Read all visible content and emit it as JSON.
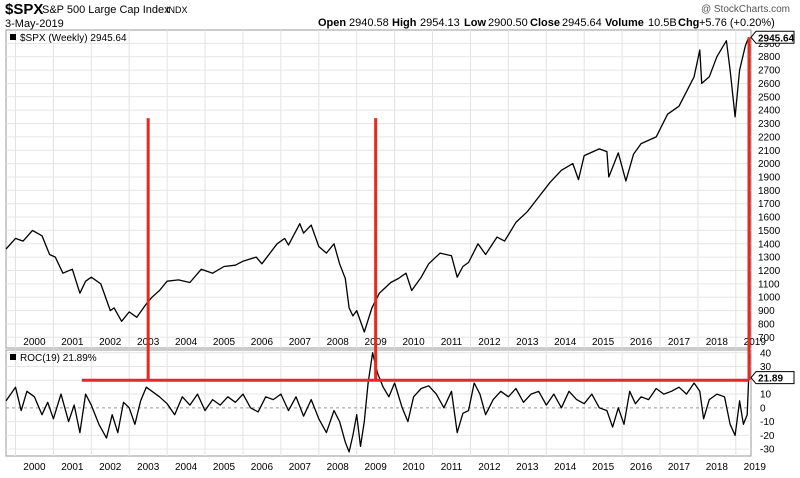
{
  "header": {
    "symbol": "$SPX",
    "name": "S&P 500 Large Cap Index",
    "exchange": "INDX",
    "date": "3-May-2019",
    "watermark": "@ StockCharts.com",
    "quote": {
      "open_label": "Open",
      "open": "2940.58",
      "high_label": "High",
      "high": "2954.13",
      "low_label": "Low",
      "low": "2900.50",
      "close_label": "Close",
      "close": "2945.64",
      "volume_label": "Volume",
      "volume": "10.5B",
      "chg_label": "Chg",
      "chg": "+5.76 (+0.20%)"
    }
  },
  "chart_data": [
    {
      "type": "line",
      "legend": "$SPX (Weekly) 2945.64",
      "last_value_label": "2945.64",
      "x_tick_labels": [
        "2000",
        "2001",
        "2002",
        "2003",
        "2004",
        "2005",
        "2006",
        "2007",
        "2008",
        "2009",
        "2010",
        "2011",
        "2012",
        "2013",
        "2014",
        "2015",
        "2016",
        "2017",
        "2018",
        "2019"
      ],
      "y_tick_labels": [
        "700",
        "800",
        "900",
        "1000",
        "1100",
        "1200",
        "1300",
        "1400",
        "1500",
        "1600",
        "1700",
        "1800",
        "1900",
        "2000",
        "2100",
        "2200",
        "2300",
        "2400",
        "2500",
        "2600",
        "2700",
        "2800",
        "2900"
      ],
      "ylim": [
        620,
        3000
      ],
      "x_range": [
        1999.75,
        2019.4
      ],
      "series": [
        {
          "x": [
            1999.75,
            2000.0,
            2000.2,
            2000.45,
            2000.7,
            2000.9,
            2001.05,
            2001.25,
            2001.5,
            2001.7,
            2001.85,
            2002.0,
            2002.25,
            2002.5,
            2002.6,
            2002.8,
            2003.0,
            2003.2,
            2003.45,
            2003.6,
            2003.8,
            2004.0,
            2004.3,
            2004.6,
            2004.9,
            2005.2,
            2005.5,
            2005.8,
            2006.0,
            2006.35,
            2006.5,
            2006.9,
            2007.1,
            2007.2,
            2007.5,
            2007.6,
            2007.8,
            2008.0,
            2008.2,
            2008.4,
            2008.55,
            2008.7,
            2008.8,
            2008.9,
            2009.0,
            2009.2,
            2009.4,
            2009.6,
            2009.9,
            2010.1,
            2010.3,
            2010.45,
            2010.7,
            2010.9,
            2011.2,
            2011.5,
            2011.65,
            2011.8,
            2011.95,
            2012.2,
            2012.4,
            2012.7,
            2012.9,
            2013.2,
            2013.5,
            2013.8,
            2014.1,
            2014.4,
            2014.7,
            2014.85,
            2015.0,
            2015.4,
            2015.6,
            2015.65,
            2015.9,
            2016.1,
            2016.3,
            2016.5,
            2016.9,
            2017.2,
            2017.5,
            2017.9,
            2018.05,
            2018.1,
            2018.3,
            2018.5,
            2018.75,
            2018.85,
            2018.98,
            2019.1,
            2019.25,
            2019.34
          ],
          "y": [
            1360,
            1440,
            1420,
            1500,
            1460,
            1320,
            1300,
            1180,
            1210,
            1030,
            1120,
            1150,
            1100,
            900,
            920,
            820,
            890,
            850,
            950,
            1000,
            1050,
            1120,
            1130,
            1110,
            1210,
            1180,
            1230,
            1240,
            1270,
            1300,
            1250,
            1400,
            1440,
            1390,
            1550,
            1480,
            1540,
            1380,
            1330,
            1400,
            1250,
            1140,
            920,
            860,
            900,
            740,
            920,
            1030,
            1110,
            1140,
            1180,
            1050,
            1150,
            1250,
            1330,
            1310,
            1150,
            1230,
            1260,
            1400,
            1320,
            1450,
            1420,
            1560,
            1640,
            1750,
            1860,
            1950,
            2000,
            1880,
            2060,
            2110,
            2090,
            1900,
            2080,
            1870,
            2070,
            2150,
            2200,
            2370,
            2430,
            2650,
            2850,
            2600,
            2650,
            2800,
            2920,
            2700,
            2350,
            2700,
            2880,
            2945.64
          ]
        }
      ],
      "annotations": {
        "vertical_marker_dates": [
          2003.5,
          2009.5
        ],
        "marker_top_value": 2340
      }
    },
    {
      "type": "line",
      "legend": "ROC(19) 21.89%",
      "last_value_label": "21.89",
      "x_tick_labels": [
        "2000",
        "2001",
        "2002",
        "2003",
        "2004",
        "2005",
        "2006",
        "2007",
        "2008",
        "2009",
        "2010",
        "2011",
        "2012",
        "2013",
        "2014",
        "2015",
        "2016",
        "2017",
        "2018",
        "2019"
      ],
      "y_tick_labels": [
        "40",
        "30",
        "20",
        "10",
        "0",
        "-10",
        "-20",
        "-30"
      ],
      "ylim": [
        -35,
        42
      ],
      "x_range": [
        1999.75,
        2019.4
      ],
      "threshold_line": 20,
      "series": [
        {
          "x": [
            1999.75,
            2000.0,
            2000.15,
            2000.3,
            2000.5,
            2000.7,
            2000.85,
            2001.0,
            2001.2,
            2001.4,
            2001.55,
            2001.7,
            2001.85,
            2002.0,
            2002.2,
            2002.4,
            2002.55,
            2002.7,
            2002.85,
            2003.0,
            2003.15,
            2003.3,
            2003.45,
            2003.6,
            2003.8,
            2004.0,
            2004.2,
            2004.4,
            2004.6,
            2004.8,
            2005.0,
            2005.2,
            2005.4,
            2005.6,
            2005.8,
            2006.0,
            2006.2,
            2006.4,
            2006.6,
            2006.8,
            2007.0,
            2007.2,
            2007.4,
            2007.6,
            2007.8,
            2008.0,
            2008.2,
            2008.4,
            2008.55,
            2008.7,
            2008.8,
            2008.9,
            2009.0,
            2009.1,
            2009.2,
            2009.3,
            2009.42,
            2009.55,
            2009.7,
            2009.85,
            2010.0,
            2010.2,
            2010.35,
            2010.5,
            2010.7,
            2010.9,
            2011.1,
            2011.3,
            2011.5,
            2011.65,
            2011.8,
            2011.95,
            2012.1,
            2012.25,
            2012.4,
            2012.6,
            2012.8,
            2013.0,
            2013.2,
            2013.4,
            2013.6,
            2013.8,
            2014.0,
            2014.2,
            2014.4,
            2014.6,
            2014.8,
            2015.0,
            2015.2,
            2015.4,
            2015.6,
            2015.75,
            2015.9,
            2016.05,
            2016.2,
            2016.35,
            2016.5,
            2016.7,
            2016.9,
            2017.1,
            2017.3,
            2017.5,
            2017.7,
            2017.9,
            2018.05,
            2018.15,
            2018.3,
            2018.5,
            2018.7,
            2018.85,
            2018.98,
            2019.1,
            2019.2,
            2019.3,
            2019.34
          ],
          "y": [
            5,
            15,
            -2,
            12,
            8,
            -5,
            4,
            -8,
            10,
            -10,
            2,
            -18,
            10,
            2,
            -12,
            -22,
            -5,
            -18,
            4,
            0,
            -12,
            5,
            15,
            12,
            8,
            3,
            -5,
            8,
            2,
            10,
            -2,
            6,
            2,
            8,
            4,
            10,
            0,
            -3,
            8,
            6,
            10,
            -2,
            8,
            -6,
            6,
            -8,
            -18,
            -2,
            -10,
            -25,
            -32,
            -20,
            -5,
            -28,
            -10,
            18,
            40,
            25,
            15,
            8,
            18,
            0,
            -10,
            8,
            14,
            16,
            10,
            0,
            12,
            -18,
            -4,
            -2,
            18,
            10,
            -5,
            6,
            12,
            8,
            14,
            4,
            10,
            12,
            2,
            10,
            0,
            12,
            6,
            3,
            10,
            0,
            -2,
            -14,
            0,
            -12,
            12,
            3,
            8,
            6,
            14,
            10,
            12,
            15,
            10,
            18,
            12,
            -8,
            6,
            10,
            8,
            -12,
            -20,
            5,
            -12,
            -5,
            21.89
          ]
        }
      ]
    }
  ]
}
